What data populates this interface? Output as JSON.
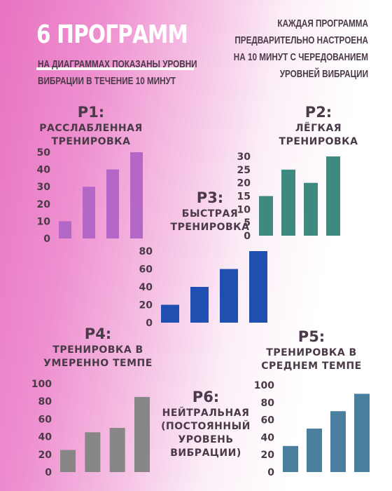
{
  "header": {
    "title": "6 ПРОГРАММ",
    "subtitle_lines": [
      "НА ДИАГРАММАХ ПОКАЗАНЫ УРОВНИ",
      "ВИБРАЦИИ В ТЕЧЕНИЕ 10 МИНУТ"
    ],
    "note_lines": [
      "КАЖДАЯ ПРОГРАММА",
      "ПРЕДВАРИТЕЛЬНО НАСТРОЕНА",
      "НА 10 МИНУТ С ЧЕРЕДОВАНИЕМ",
      "УРОВНЕЙ ВИБРАЦИИ"
    ]
  },
  "programs": [
    {
      "code": "P1:",
      "name_lines": [
        "РАССЛАБЛЕННАЯ",
        "ТРЕНИРОВКА"
      ]
    },
    {
      "code": "P2:",
      "name_lines": [
        "ЛЁГКАЯ",
        "ТРЕНИРОВКА"
      ]
    },
    {
      "code": "P3:",
      "name_lines": [
        "БЫСТРАЯ",
        "ТРЕНИРОВКА"
      ]
    },
    {
      "code": "P4:",
      "name_lines": [
        "ТРЕНИРОВКА В",
        "УМЕРЕННО ТЕМПЕ"
      ]
    },
    {
      "code": "P5:",
      "name_lines": [
        "ТРЕНИРОВКА В",
        "СРЕДНЕМ ТЕМПЕ"
      ]
    },
    {
      "code": "P6:",
      "name_lines": [
        "НЕЙТРАЛЬНАЯ",
        "(ПОСТОЯННЫЙ",
        "УРОВЕНЬ",
        "ВИБРАЦИИ)"
      ]
    }
  ],
  "colors": {
    "p1": "#b567c8",
    "p2": "#3f8a80",
    "p3": "#1f4fb0",
    "p4": "#878787",
    "p5": "#4a7f9f"
  },
  "chart_data": [
    {
      "type": "bar",
      "title": "P1: РАССЛАБЛЕННАЯ ТРЕНИРОВКА",
      "values": [
        10,
        30,
        40,
        50
      ],
      "ylim": [
        0,
        50
      ],
      "yticks": [
        0,
        10,
        20,
        30,
        40,
        50
      ],
      "grid": false
    },
    {
      "type": "bar",
      "title": "P2: ЛЁГКАЯ ТРЕНИРОВКА",
      "values": [
        15,
        25,
        20,
        30
      ],
      "ylim": [
        0,
        30
      ],
      "yticks": [
        0,
        5,
        10,
        15,
        20,
        25,
        30
      ],
      "grid": false
    },
    {
      "type": "bar",
      "title": "P3: БЫСТРАЯ ТРЕНИРОВКА",
      "values": [
        20,
        40,
        60,
        80
      ],
      "ylim": [
        0,
        80
      ],
      "yticks": [
        0,
        20,
        40,
        60,
        80
      ],
      "grid": false
    },
    {
      "type": "bar",
      "title": "P4: ТРЕНИРОВКА В УМЕРЕННО ТЕМПЕ",
      "values": [
        25,
        45,
        50,
        85
      ],
      "ylim": [
        0,
        100
      ],
      "yticks": [
        0,
        20,
        40,
        60,
        80,
        100
      ],
      "grid": false
    },
    {
      "type": "bar",
      "title": "P5: ТРЕНИРОВКА В СРЕДНЕМ ТЕМПЕ",
      "values": [
        30,
        50,
        70,
        90
      ],
      "ylim": [
        0,
        100
      ],
      "yticks": [
        0,
        20,
        40,
        60,
        80,
        100
      ],
      "grid": false
    }
  ]
}
